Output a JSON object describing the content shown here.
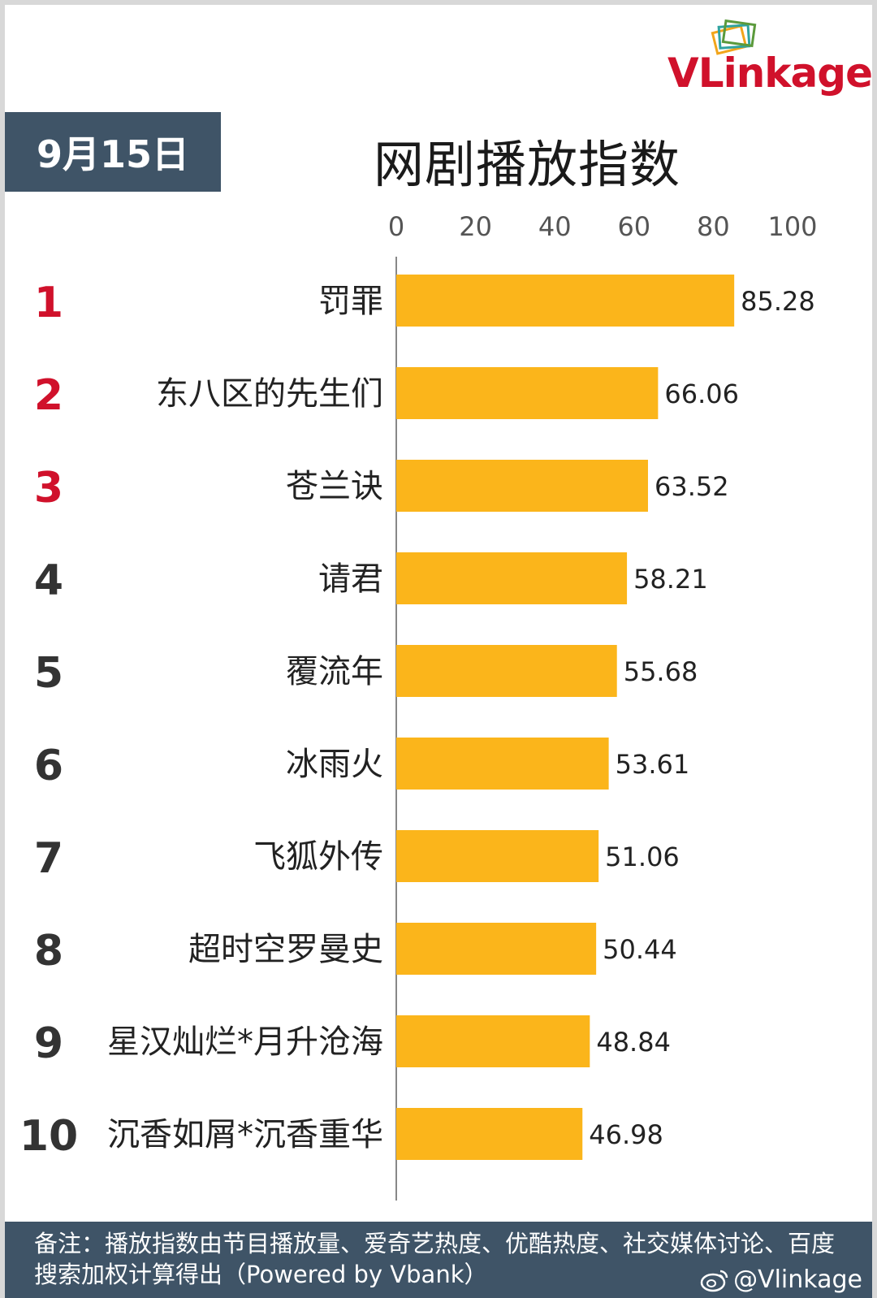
{
  "header": {
    "logo_text_v": "VL",
    "logo_text_rest": "inkage",
    "date_label": "9月15日",
    "title": "网剧播放指数"
  },
  "footer": {
    "note": "备注：播放指数由节目播放量、爱奇艺热度、优酷热度、社交媒体讨论、百度搜索加权计算得出（Powered by Vbank）",
    "handle": "@Vlinkage"
  },
  "colors": {
    "bar": "#FBB51B",
    "rank_top": "#D0112B",
    "rank_other": "#333333",
    "accent_box": "#3F5467"
  },
  "chart_data": {
    "type": "bar",
    "orientation": "horizontal",
    "title": "网剧播放指数",
    "xlim": [
      0,
      100
    ],
    "x_ticks": [
      0,
      20,
      40,
      60,
      80,
      100
    ],
    "grid": false,
    "ranks": [
      "1",
      "2",
      "3",
      "4",
      "5",
      "6",
      "7",
      "8",
      "9",
      "10"
    ],
    "categories": [
      "罚罪",
      "东八区的先生们",
      "苍兰诀",
      "请君",
      "覆流年",
      "冰雨火",
      "飞狐外传",
      "超时空罗曼史",
      "星汉灿烂*月升沧海",
      "沉香如屑*沉香重华"
    ],
    "values": [
      85.28,
      66.06,
      63.52,
      58.21,
      55.68,
      53.61,
      51.06,
      50.44,
      48.84,
      46.98
    ],
    "value_labels": [
      "85.28",
      "66.06",
      "63.52",
      "58.21",
      "55.68",
      "53.61",
      "51.06",
      "50.44",
      "48.84",
      "46.98"
    ]
  }
}
